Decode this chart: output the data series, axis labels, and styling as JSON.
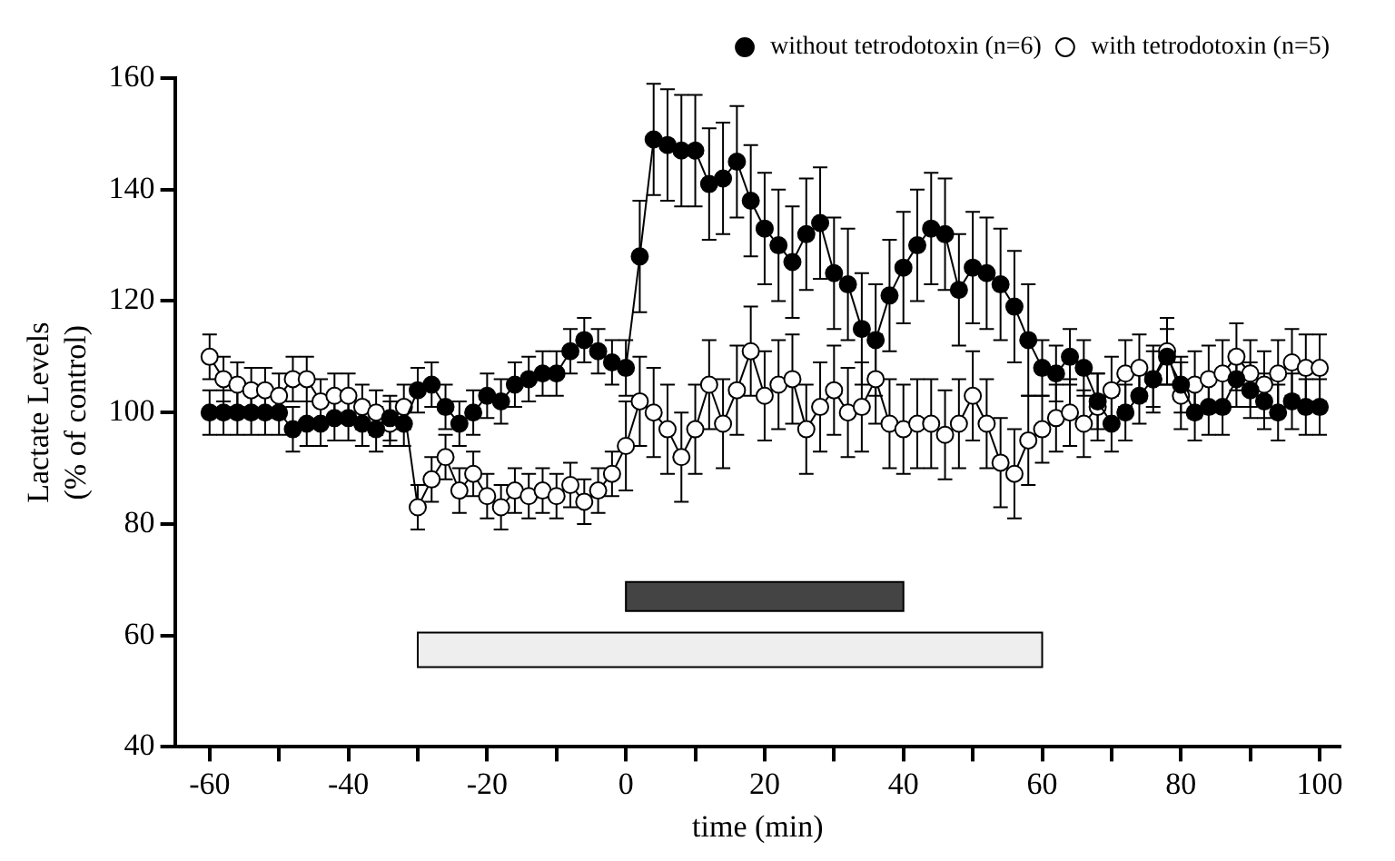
{
  "chart_data": {
    "type": "line",
    "xlabel": "time (min)",
    "ylabel": "Lactate Levels\n(% of control)",
    "x": [
      -60,
      -58,
      -56,
      -54,
      -52,
      -50,
      -48,
      -46,
      -44,
      -42,
      -40,
      -38,
      -36,
      -34,
      -32,
      -30,
      -28,
      -26,
      -24,
      -22,
      -20,
      -18,
      -16,
      -14,
      -12,
      -10,
      -8,
      -6,
      -4,
      -2,
      0,
      2,
      4,
      6,
      8,
      10,
      12,
      14,
      16,
      18,
      20,
      22,
      24,
      26,
      28,
      30,
      32,
      34,
      36,
      38,
      40,
      42,
      44,
      46,
      48,
      50,
      52,
      54,
      56,
      58,
      60,
      62,
      64,
      66,
      68,
      70,
      72,
      74,
      76,
      78,
      80,
      82,
      84,
      86,
      88,
      90,
      92,
      94,
      96,
      98,
      100
    ],
    "series": [
      {
        "name": "without tetrodotoxin (n=6)",
        "color": "#000000",
        "values": [
          100,
          100,
          100,
          100,
          100,
          100,
          97,
          98,
          98,
          99,
          99,
          98,
          97,
          99,
          98,
          104,
          105,
          101,
          98,
          100,
          103,
          102,
          105,
          106,
          107,
          107,
          111,
          113,
          111,
          109,
          108,
          128,
          149,
          148,
          147,
          147,
          141,
          142,
          145,
          138,
          133,
          130,
          127,
          132,
          134,
          125,
          123,
          115,
          113,
          121,
          126,
          130,
          133,
          132,
          122,
          126,
          125,
          123,
          119,
          113,
          108,
          107,
          110,
          108,
          102,
          98,
          100,
          103,
          106,
          110,
          105,
          100,
          101,
          101,
          106,
          104,
          102,
          100,
          102,
          101,
          101
        ],
        "errors": [
          4,
          4,
          4,
          4,
          4,
          4,
          4,
          4,
          4,
          4,
          4,
          4,
          4,
          4,
          4,
          4,
          4,
          4,
          4,
          4,
          4,
          4,
          4,
          4,
          4,
          4,
          4,
          4,
          4,
          4,
          5,
          10,
          10,
          10,
          10,
          10,
          10,
          10,
          10,
          10,
          10,
          10,
          10,
          10,
          10,
          10,
          10,
          10,
          10,
          10,
          10,
          10,
          10,
          10,
          10,
          10,
          10,
          10,
          10,
          10,
          5,
          5,
          5,
          5,
          5,
          5,
          5,
          5,
          5,
          5,
          5,
          5,
          5,
          5,
          5,
          5,
          5,
          5,
          5,
          5,
          5
        ]
      },
      {
        "name": "with tetrodotoxin (n=5)",
        "color": "#ffffff",
        "values": [
          110,
          106,
          105,
          104,
          104,
          103,
          106,
          106,
          102,
          103,
          103,
          101,
          100,
          98,
          101,
          83,
          88,
          92,
          86,
          89,
          85,
          83,
          86,
          85,
          86,
          85,
          87,
          84,
          86,
          89,
          94,
          102,
          100,
          97,
          92,
          97,
          105,
          98,
          104,
          111,
          103,
          105,
          106,
          97,
          101,
          104,
          100,
          101,
          106,
          98,
          97,
          98,
          98,
          96,
          98,
          103,
          98,
          91,
          89,
          95,
          97,
          99,
          100,
          98,
          101,
          104,
          107,
          108,
          106,
          111,
          103,
          105,
          106,
          107,
          110,
          107,
          105,
          107,
          109,
          108,
          108
        ],
        "errors": [
          4,
          4,
          4,
          4,
          4,
          4,
          4,
          4,
          4,
          4,
          4,
          4,
          4,
          4,
          4,
          4,
          4,
          4,
          4,
          4,
          4,
          4,
          4,
          4,
          4,
          4,
          4,
          4,
          4,
          4,
          8,
          8,
          8,
          8,
          8,
          8,
          8,
          8,
          8,
          8,
          8,
          8,
          8,
          8,
          8,
          8,
          8,
          8,
          8,
          8,
          8,
          8,
          8,
          8,
          8,
          8,
          8,
          8,
          8,
          8,
          6,
          6,
          6,
          6,
          6,
          6,
          6,
          6,
          6,
          6,
          6,
          6,
          6,
          6,
          6,
          6,
          6,
          6,
          6,
          6,
          6
        ]
      }
    ],
    "bands": [
      {
        "axis": "x",
        "from": 0,
        "to": 40,
        "color": "#444444"
      },
      {
        "axis": "x",
        "from": -30,
        "to": 60,
        "color": "#eeeeee"
      }
    ],
    "xlim": [
      -65,
      103
    ],
    "xticks": [
      -60,
      {
        "value": -50,
        "label": null
      },
      -40,
      {
        "value": -30,
        "label": null
      },
      -20,
      {
        "value": -10,
        "label": null
      },
      0,
      {
        "value": 10,
        "label": null
      },
      20,
      {
        "value": 30,
        "label": null
      },
      40,
      {
        "value": 50,
        "label": null
      },
      60,
      {
        "value": 70,
        "label": null
      },
      80,
      {
        "value": 90,
        "label": null
      },
      100
    ],
    "ylim": [
      40,
      160
    ],
    "yticks": [
      40,
      60,
      80,
      100,
      120,
      140,
      160
    ],
    "grid": false,
    "legend": "top right",
    "marker": "circle",
    "line_style": "solid"
  }
}
